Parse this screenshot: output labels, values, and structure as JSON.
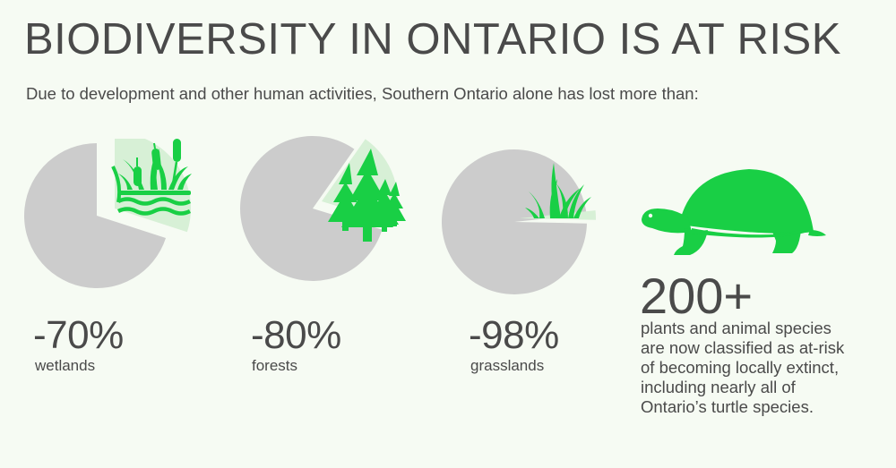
{
  "header": {
    "title": "BIODIVERSITY IN ONTARIO IS AT RISK",
    "subtitle": "Due to development and other human activities, Southern Ontario alone has lost more than:"
  },
  "colors": {
    "background": "#f6fbf3",
    "pie_remaining": "#cccccc",
    "pie_lost": "#d7f0d6",
    "accent_green": "#19cf45",
    "text": "#4a4a4a"
  },
  "chart_data": [
    {
      "type": "pie",
      "title": "",
      "slices": [
        {
          "label": "lost",
          "value": 70
        },
        {
          "label": "remaining",
          "value": 30
        }
      ],
      "percent_label": "-70%",
      "category": "wetlands",
      "icon": "cattail-wetland-icon"
    },
    {
      "type": "pie",
      "title": "",
      "slices": [
        {
          "label": "lost",
          "value": 80
        },
        {
          "label": "remaining",
          "value": 20
        }
      ],
      "percent_label": "-80%",
      "category": "forests",
      "icon": "pine-trees-icon"
    },
    {
      "type": "pie",
      "title": "",
      "slices": [
        {
          "label": "lost",
          "value": 98
        },
        {
          "label": "remaining",
          "value": 2
        }
      ],
      "percent_label": "-98%",
      "category": "grasslands",
      "icon": "grass-icon"
    }
  ],
  "species": {
    "icon": "turtle-icon",
    "number": "200+",
    "lines": [
      "plants and animal species",
      "are now classified as at-risk",
      "of becoming locally extinct,",
      "including nearly all of",
      "Ontario’s turtle species."
    ]
  }
}
